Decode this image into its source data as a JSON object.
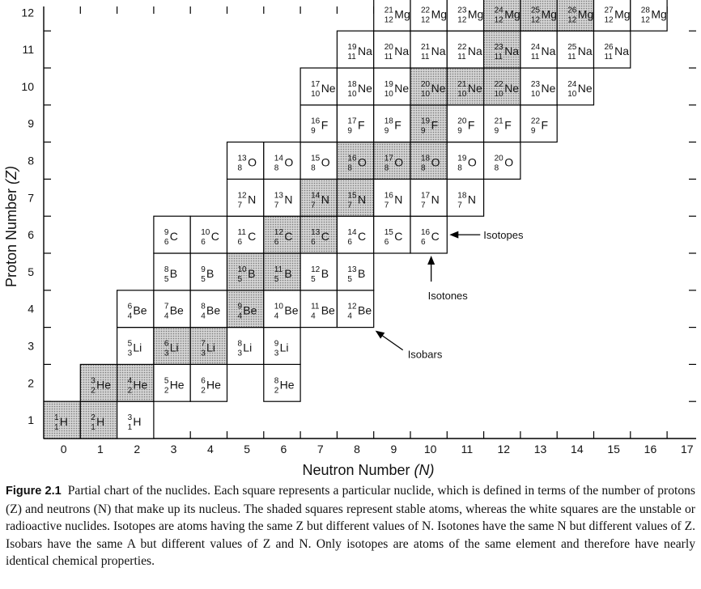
{
  "chart_data": {
    "type": "table",
    "xlabel": "Neutron Number (N)",
    "ylabel": "Proton Number (Z)",
    "x_ticks": [
      "0",
      "1",
      "2",
      "3",
      "4",
      "5",
      "6",
      "7",
      "8",
      "9",
      "10",
      "11",
      "12",
      "13",
      "14",
      "15",
      "16",
      "17"
    ],
    "y_ticks": [
      "1",
      "2",
      "3",
      "4",
      "5",
      "6",
      "7",
      "8",
      "9",
      "10",
      "11",
      "12"
    ],
    "shading": {
      "stable": "#b8b8b8",
      "unstable": "#ffffff"
    },
    "nuclides": [
      {
        "symbol": "H",
        "A": 1,
        "Z": 1,
        "N": 0,
        "stable": true
      },
      {
        "symbol": "H",
        "A": 2,
        "Z": 1,
        "N": 1,
        "stable": true
      },
      {
        "symbol": "H",
        "A": 3,
        "Z": 1,
        "N": 2,
        "stable": false
      },
      {
        "symbol": "He",
        "A": 3,
        "Z": 2,
        "N": 1,
        "stable": true
      },
      {
        "symbol": "He",
        "A": 4,
        "Z": 2,
        "N": 2,
        "stable": true
      },
      {
        "symbol": "He",
        "A": 5,
        "Z": 2,
        "N": 3,
        "stable": false
      },
      {
        "symbol": "He",
        "A": 6,
        "Z": 2,
        "N": 4,
        "stable": false
      },
      {
        "symbol": "He",
        "A": 8,
        "Z": 2,
        "N": 6,
        "stable": false
      },
      {
        "symbol": "Li",
        "A": 5,
        "Z": 3,
        "N": 2,
        "stable": false
      },
      {
        "symbol": "Li",
        "A": 6,
        "Z": 3,
        "N": 3,
        "stable": true
      },
      {
        "symbol": "Li",
        "A": 7,
        "Z": 3,
        "N": 4,
        "stable": true
      },
      {
        "symbol": "Li",
        "A": 8,
        "Z": 3,
        "N": 5,
        "stable": false
      },
      {
        "symbol": "Li",
        "A": 9,
        "Z": 3,
        "N": 6,
        "stable": false
      },
      {
        "symbol": "Be",
        "A": 6,
        "Z": 4,
        "N": 2,
        "stable": false
      },
      {
        "symbol": "Be",
        "A": 7,
        "Z": 4,
        "N": 3,
        "stable": false
      },
      {
        "symbol": "Be",
        "A": 8,
        "Z": 4,
        "N": 4,
        "stable": false
      },
      {
        "symbol": "Be",
        "A": 9,
        "Z": 4,
        "N": 5,
        "stable": true
      },
      {
        "symbol": "Be",
        "A": 10,
        "Z": 4,
        "N": 6,
        "stable": false
      },
      {
        "symbol": "Be",
        "A": 11,
        "Z": 4,
        "N": 7,
        "stable": false
      },
      {
        "symbol": "Be",
        "A": 12,
        "Z": 4,
        "N": 8,
        "stable": false
      },
      {
        "symbol": "B",
        "A": 8,
        "Z": 5,
        "N": 3,
        "stable": false
      },
      {
        "symbol": "B",
        "A": 9,
        "Z": 5,
        "N": 4,
        "stable": false
      },
      {
        "symbol": "B",
        "A": 10,
        "Z": 5,
        "N": 5,
        "stable": true
      },
      {
        "symbol": "B",
        "A": 11,
        "Z": 5,
        "N": 6,
        "stable": true
      },
      {
        "symbol": "B",
        "A": 12,
        "Z": 5,
        "N": 7,
        "stable": false
      },
      {
        "symbol": "B",
        "A": 13,
        "Z": 5,
        "N": 8,
        "stable": false
      },
      {
        "symbol": "C",
        "A": 9,
        "Z": 6,
        "N": 3,
        "stable": false
      },
      {
        "symbol": "C",
        "A": 10,
        "Z": 6,
        "N": 4,
        "stable": false
      },
      {
        "symbol": "C",
        "A": 11,
        "Z": 6,
        "N": 5,
        "stable": false
      },
      {
        "symbol": "C",
        "A": 12,
        "Z": 6,
        "N": 6,
        "stable": true
      },
      {
        "symbol": "C",
        "A": 13,
        "Z": 6,
        "N": 7,
        "stable": true
      },
      {
        "symbol": "C",
        "A": 14,
        "Z": 6,
        "N": 8,
        "stable": false
      },
      {
        "symbol": "C",
        "A": 15,
        "Z": 6,
        "N": 9,
        "stable": false
      },
      {
        "symbol": "C",
        "A": 16,
        "Z": 6,
        "N": 10,
        "stable": false
      },
      {
        "symbol": "N",
        "A": 12,
        "Z": 7,
        "N": 5,
        "stable": false
      },
      {
        "symbol": "N",
        "A": 13,
        "Z": 7,
        "N": 6,
        "stable": false
      },
      {
        "symbol": "N",
        "A": 14,
        "Z": 7,
        "N": 7,
        "stable": true
      },
      {
        "symbol": "N",
        "A": 15,
        "Z": 7,
        "N": 8,
        "stable": true
      },
      {
        "symbol": "N",
        "A": 16,
        "Z": 7,
        "N": 9,
        "stable": false
      },
      {
        "symbol": "N",
        "A": 17,
        "Z": 7,
        "N": 10,
        "stable": false
      },
      {
        "symbol": "N",
        "A": 18,
        "Z": 7,
        "N": 11,
        "stable": false
      },
      {
        "symbol": "O",
        "A": 13,
        "Z": 8,
        "N": 5,
        "stable": false
      },
      {
        "symbol": "O",
        "A": 14,
        "Z": 8,
        "N": 6,
        "stable": false
      },
      {
        "symbol": "O",
        "A": 15,
        "Z": 8,
        "N": 7,
        "stable": false
      },
      {
        "symbol": "O",
        "A": 16,
        "Z": 8,
        "N": 8,
        "stable": true
      },
      {
        "symbol": "O",
        "A": 17,
        "Z": 8,
        "N": 9,
        "stable": true
      },
      {
        "symbol": "O",
        "A": 18,
        "Z": 8,
        "N": 10,
        "stable": true
      },
      {
        "symbol": "O",
        "A": 19,
        "Z": 8,
        "N": 11,
        "stable": false
      },
      {
        "symbol": "O",
        "A": 20,
        "Z": 8,
        "N": 12,
        "stable": false
      },
      {
        "symbol": "F",
        "A": 16,
        "Z": 9,
        "N": 7,
        "stable": false
      },
      {
        "symbol": "F",
        "A": 17,
        "Z": 9,
        "N": 8,
        "stable": false
      },
      {
        "symbol": "F",
        "A": 18,
        "Z": 9,
        "N": 9,
        "stable": false
      },
      {
        "symbol": "F",
        "A": 19,
        "Z": 9,
        "N": 10,
        "stable": true
      },
      {
        "symbol": "F",
        "A": 20,
        "Z": 9,
        "N": 11,
        "stable": false
      },
      {
        "symbol": "F",
        "A": 21,
        "Z": 9,
        "N": 12,
        "stable": false
      },
      {
        "symbol": "F",
        "A": 22,
        "Z": 9,
        "N": 13,
        "stable": false
      },
      {
        "symbol": "Ne",
        "A": 17,
        "Z": 10,
        "N": 7,
        "stable": false
      },
      {
        "symbol": "Ne",
        "A": 18,
        "Z": 10,
        "N": 8,
        "stable": false
      },
      {
        "symbol": "Ne",
        "A": 19,
        "Z": 10,
        "N": 9,
        "stable": false
      },
      {
        "symbol": "Ne",
        "A": 20,
        "Z": 10,
        "N": 10,
        "stable": true
      },
      {
        "symbol": "Ne",
        "A": 21,
        "Z": 10,
        "N": 11,
        "stable": true
      },
      {
        "symbol": "Ne",
        "A": 22,
        "Z": 10,
        "N": 12,
        "stable": true
      },
      {
        "symbol": "Ne",
        "A": 23,
        "Z": 10,
        "N": 13,
        "stable": false
      },
      {
        "symbol": "Ne",
        "A": 24,
        "Z": 10,
        "N": 14,
        "stable": false
      },
      {
        "symbol": "Na",
        "A": 19,
        "Z": 11,
        "N": 8,
        "stable": false
      },
      {
        "symbol": "Na",
        "A": 20,
        "Z": 11,
        "N": 9,
        "stable": false
      },
      {
        "symbol": "Na",
        "A": 21,
        "Z": 11,
        "N": 10,
        "stable": false
      },
      {
        "symbol": "Na",
        "A": 22,
        "Z": 11,
        "N": 11,
        "stable": false
      },
      {
        "symbol": "Na",
        "A": 23,
        "Z": 11,
        "N": 12,
        "stable": true
      },
      {
        "symbol": "Na",
        "A": 24,
        "Z": 11,
        "N": 13,
        "stable": false
      },
      {
        "symbol": "Na",
        "A": 25,
        "Z": 11,
        "N": 14,
        "stable": false
      },
      {
        "symbol": "Na",
        "A": 26,
        "Z": 11,
        "N": 15,
        "stable": false
      },
      {
        "symbol": "Mg",
        "A": 21,
        "Z": 12,
        "N": 9,
        "stable": false
      },
      {
        "symbol": "Mg",
        "A": 22,
        "Z": 12,
        "N": 10,
        "stable": false
      },
      {
        "symbol": "Mg",
        "A": 23,
        "Z": 12,
        "N": 11,
        "stable": false
      },
      {
        "symbol": "Mg",
        "A": 24,
        "Z": 12,
        "N": 12,
        "stable": true
      },
      {
        "symbol": "Mg",
        "A": 25,
        "Z": 12,
        "N": 13,
        "stable": true
      },
      {
        "symbol": "Mg",
        "A": 26,
        "Z": 12,
        "N": 14,
        "stable": true
      },
      {
        "symbol": "Mg",
        "A": 27,
        "Z": 12,
        "N": 15,
        "stable": false
      },
      {
        "symbol": "Mg",
        "A": 28,
        "Z": 12,
        "N": 16,
        "stable": false
      }
    ],
    "annotations": [
      {
        "text": "Isotopes",
        "target": "C-16 (Z 6, N 10)",
        "direction": "left arrow"
      },
      {
        "text": "Isotones",
        "target": "C-16 (Z 6, N 10)",
        "direction": "up arrow"
      },
      {
        "text": "Isobars",
        "target": "Be-12 (Z 4, N 8)",
        "direction": "diagonal arrow"
      }
    ]
  },
  "caption": {
    "label": "Figure 2.1",
    "text": "Partial chart of the nuclides. Each square represents a particular nuclide, which is defined in terms of the number of protons (Z) and neutrons (N) that make up its nucleus. The shaded squares represent stable atoms, whereas the white squares are the unstable or radioactive nuclides. Isotopes are atoms having the same Z but different values of N. Isotones have the same N but different values of Z. Isobars have the same A but different values of Z and N. Only isotopes are atoms of the same element and therefore have nearly identical chemical properties."
  }
}
